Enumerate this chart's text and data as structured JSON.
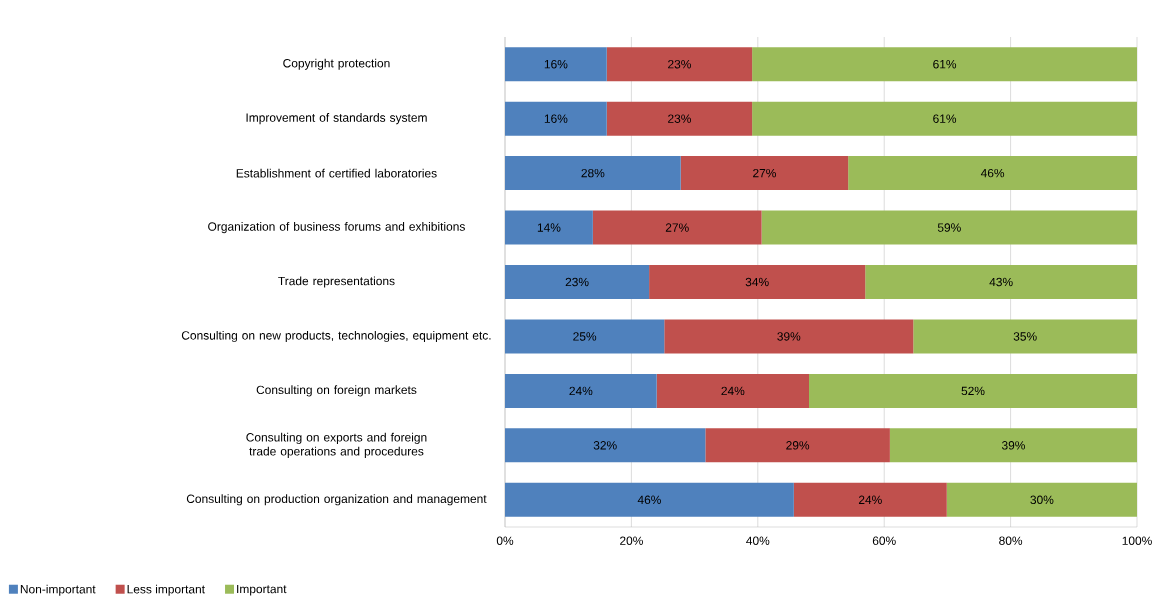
{
  "chart_data": {
    "type": "bar",
    "orientation": "horizontal",
    "stacked": true,
    "categories": [
      "Copyright protection",
      "Improvement of standards system",
      "Establishment of certified laboratories",
      "Organization of business forums and exhibitions",
      "Trade representations",
      "Consulting on new products, technologies, equipment etc.",
      "Consulting on foreign markets",
      "Consulting on exports and foreign trade operations and procedures",
      "Consulting on production organization and management"
    ],
    "series": [
      {
        "name": "Non-important",
        "color": "#4f81bd",
        "values": [
          16.1,
          16.1,
          27.8,
          13.9,
          22.8,
          25.2,
          24.0,
          31.7,
          45.7
        ],
        "value_labels": [
          "16%",
          "16%",
          "28%",
          "14%",
          "23%",
          "25%",
          "24%",
          "32%",
          "46%"
        ]
      },
      {
        "name": "Less important",
        "color": "#c0504d",
        "values": [
          23.0,
          23.0,
          26.5,
          26.7,
          34.2,
          39.4,
          24.1,
          29.2,
          24.2
        ],
        "value_labels": [
          "23%",
          "23%",
          "27%",
          "27%",
          "34%",
          "39%",
          "24%",
          "29%",
          "24%"
        ]
      },
      {
        "name": "Important",
        "color": "#9bbb59",
        "values": [
          60.9,
          60.9,
          45.7,
          59.4,
          43.0,
          35.4,
          51.9,
          39.1,
          30.1
        ],
        "value_labels": [
          "61%",
          "61%",
          "46%",
          "59%",
          "43%",
          "35%",
          "52%",
          "39%",
          "30%"
        ]
      }
    ],
    "xlim": [
      0,
      100
    ],
    "xticks": [
      {
        "value": 0,
        "label": "0%"
      },
      {
        "value": 20,
        "label": "20%"
      },
      {
        "value": 40,
        "label": "40%"
      },
      {
        "value": 60,
        "label": "60%"
      },
      {
        "value": 80,
        "label": "80%"
      },
      {
        "value": 100,
        "label": "100%"
      }
    ],
    "grid": "x",
    "legend": "bottom left"
  }
}
